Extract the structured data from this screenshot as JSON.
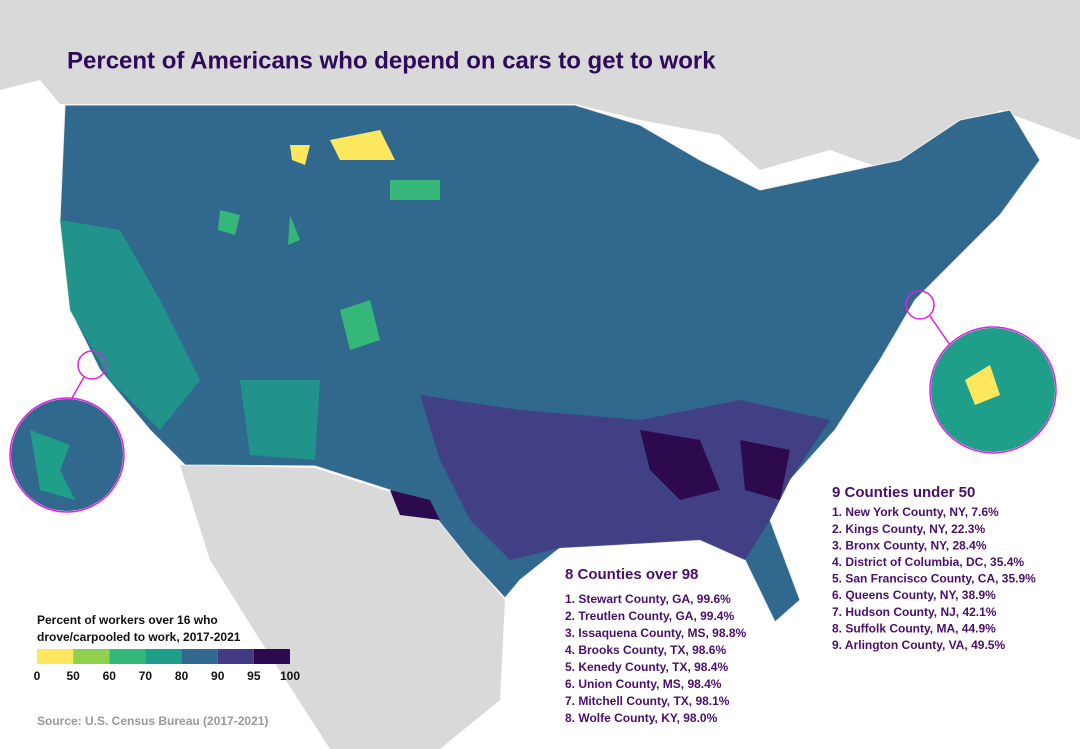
{
  "title": "Percent of Americans who depend on cars to get to work",
  "legend": {
    "title": [
      "Percent of workers over 16 who",
      "drove/carpooled to work,  2017-2021"
    ],
    "colors": [
      "#fde75f",
      "#8fd14f",
      "#35b779",
      "#1f9e89",
      "#31688e",
      "#443983",
      "#2d0a4e"
    ],
    "ticks": [
      0,
      50,
      60,
      70,
      80,
      90,
      95,
      100
    ]
  },
  "over_98": {
    "heading": "8 Counties over 98",
    "items": [
      "1. Stewart County, GA, 99.6%",
      "2. Treutlen County, GA, 99.4%",
      "3. Issaquena County, MS, 98.8%",
      "4. Brooks County, TX, 98.6%",
      "5. Kenedy County, TX, 98.4%",
      "6. Union County, MS, 98.4%",
      "7. Mitchell County, TX, 98.1%",
      "8. Wolfe County, KY, 98.0%"
    ]
  },
  "under_50": {
    "heading": "9 Counties under 50",
    "items": [
      "1. New York County, NY, 7.6%",
      "2. Kings County, NY, 22.3%",
      "3. Bronx County, NY, 28.4%",
      "4. District of Columbia, DC, 35.4%",
      "5. San Francisco County, CA, 35.9%",
      "6. Queens County, NY, 38.9%",
      "7. Hudson County, NJ, 42.1%",
      "8. Suffolk County, MA, 44.9%",
      "9. Arlington County, VA, 49.5%"
    ]
  },
  "source": "Source: U.S. Census Bureau (2017-2021)"
}
